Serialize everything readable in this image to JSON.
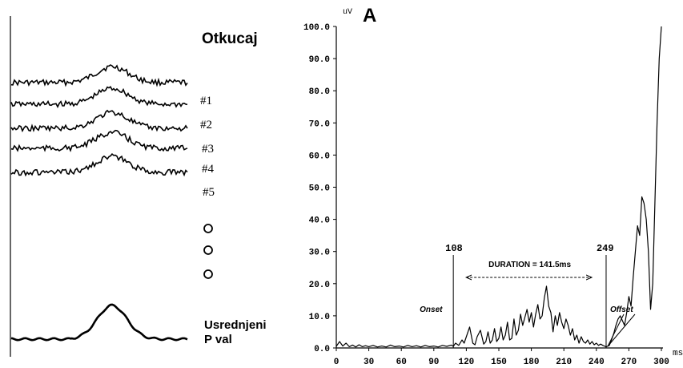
{
  "left_panel": {
    "title": "Otkucaj",
    "beats": [
      "#1",
      "#2",
      "#3",
      "#4",
      "#5"
    ],
    "ellipsis_markers": 3,
    "averaged_label_line1": "Usrednjeni",
    "averaged_label_line2": "P val"
  },
  "chart_data": {
    "type": "line",
    "panel_letter": "A",
    "ylabel": "uV",
    "xlabel": "ms",
    "xlim": [
      0,
      300
    ],
    "ylim": [
      0,
      100
    ],
    "x_ticks": [
      "0",
      "30",
      "60",
      "90",
      "120",
      "150",
      "180",
      "210",
      "240",
      "270",
      "300"
    ],
    "y_ticks": [
      "0.0",
      "10.0",
      "20.0",
      "30.0",
      "40.0",
      "50.0",
      "60.0",
      "70.0",
      "80.0",
      "90.0",
      "100.0"
    ],
    "onset": {
      "x": 108,
      "label": "108",
      "text": "Onset"
    },
    "offset": {
      "x": 249,
      "label": "249",
      "text": "Offset"
    },
    "duration_label": "DURATION = 141.5ms",
    "series": [
      {
        "x": [
          0,
          3,
          6,
          9,
          12,
          15,
          18,
          21,
          24,
          27,
          30,
          34,
          38,
          42,
          46,
          50,
          54,
          58,
          62,
          66,
          70,
          74,
          78,
          82,
          86,
          90,
          94,
          98,
          102,
          106,
          108,
          110,
          113,
          116,
          118,
          120,
          123,
          126,
          128,
          130,
          133,
          136,
          138,
          140,
          142,
          144,
          146,
          148,
          150,
          152,
          154,
          156,
          158,
          160,
          162,
          164,
          166,
          168,
          170,
          172,
          174,
          176,
          178,
          180,
          182,
          184,
          186,
          188,
          190,
          192,
          194,
          196,
          198,
          200,
          202,
          204,
          206,
          208,
          210,
          212,
          214,
          216,
          218,
          220,
          222,
          224,
          226,
          228,
          230,
          232,
          234,
          236,
          238,
          240,
          242,
          244,
          246,
          248,
          249,
          250,
          252,
          254,
          256,
          258,
          260,
          262,
          264,
          266,
          268,
          270,
          272,
          274,
          276,
          278,
          280,
          282,
          284,
          286,
          288,
          290,
          292,
          294,
          296,
          298,
          300
        ],
        "y": [
          0.5,
          2.0,
          0.6,
          1.5,
          0.4,
          0.9,
          0.3,
          1.0,
          0.4,
          0.7,
          0.4,
          0.8,
          0.3,
          0.6,
          0.3,
          0.9,
          0.4,
          0.6,
          0.3,
          0.8,
          0.4,
          0.7,
          0.3,
          0.8,
          0.4,
          0.6,
          0.3,
          0.8,
          0.5,
          0.9,
          0.5,
          1.5,
          0.8,
          2.5,
          1.5,
          3.5,
          6.5,
          1.5,
          1.0,
          3.5,
          5.5,
          1.2,
          2.0,
          5.0,
          1.5,
          2.5,
          6.0,
          2.0,
          3.0,
          6.5,
          2.5,
          4.0,
          8.0,
          2.5,
          3.0,
          9.0,
          4.0,
          5.5,
          10.5,
          7.0,
          9.5,
          12.0,
          8.0,
          11.0,
          6.5,
          10.5,
          13.5,
          9.0,
          10.0,
          15.5,
          19.2,
          13.0,
          11.0,
          5.0,
          10.0,
          7.0,
          11.0,
          8.0,
          6.0,
          9.0,
          7.0,
          4.0,
          6.0,
          2.5,
          4.0,
          1.5,
          3.5,
          2.0,
          1.5,
          2.5,
          1.2,
          2.0,
          1.0,
          1.5,
          0.8,
          1.2,
          0.8,
          0.5,
          0.3,
          0.5,
          0.8,
          2.5,
          4.5,
          7.0,
          9.0,
          10.0,
          8.5,
          7.0,
          11.0,
          16.0,
          13.0,
          22.0,
          30.0,
          38.0,
          35.0,
          47.0,
          45.0,
          40.0,
          30.0,
          12.0,
          20.0,
          45.0,
          70.0,
          90.0,
          100.0
        ]
      }
    ]
  }
}
